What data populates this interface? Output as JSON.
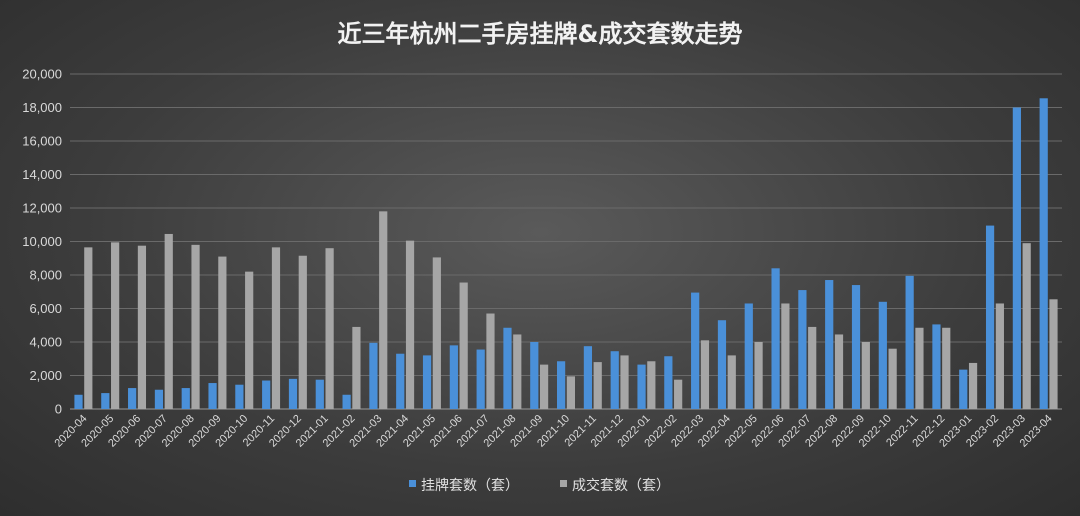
{
  "chart_data": {
    "type": "bar",
    "title": "近三年杭州二手房挂牌&成交套数走势",
    "xlabel": "",
    "ylabel": "",
    "ylim": [
      0,
      20000
    ],
    "yticks": [
      "0",
      "2,000",
      "4,000",
      "6,000",
      "8,000",
      "10,000",
      "12,000",
      "14,000",
      "16,000",
      "18,000",
      "20,000"
    ],
    "grid": true,
    "legend_position": "bottom",
    "categories": [
      "2020-04",
      "2020-05",
      "2020-06",
      "2020-07",
      "2020-08",
      "2020-09",
      "2020-10",
      "2020-11",
      "2020-12",
      "2021-01",
      "2021-02",
      "2021-03",
      "2021-04",
      "2021-05",
      "2021-06",
      "2021-07",
      "2021-08",
      "2021-09",
      "2021-10",
      "2021-11",
      "2021-12",
      "2022-01",
      "2022-02",
      "2022-03",
      "2022-04",
      "2022-05",
      "2022-06",
      "2022-07",
      "2022-08",
      "2022-09",
      "2022-10",
      "2022-11",
      "2022-12",
      "2023-01",
      "2023-02",
      "2023-03",
      "2023-04"
    ],
    "series": [
      {
        "name": "挂牌套数（套）",
        "color": "#4a90d9",
        "values": [
          850,
          950,
          1250,
          1150,
          1250,
          1550,
          1450,
          1700,
          1800,
          1750,
          850,
          3950,
          3300,
          3200,
          3800,
          3550,
          4850,
          4000,
          2850,
          3750,
          3450,
          2650,
          3150,
          6950,
          5300,
          6300,
          8400,
          7100,
          7700,
          7400,
          6400,
          7950,
          5050,
          2350,
          10950,
          18000,
          18550
        ]
      },
      {
        "name": "成交套数（套）",
        "color": "#a6a6a6",
        "values": [
          9650,
          9950,
          9750,
          10450,
          9800,
          9100,
          8200,
          9650,
          9150,
          9600,
          4900,
          11800,
          10050,
          9050,
          7550,
          5700,
          4450,
          2650,
          1950,
          2800,
          3200,
          2850,
          1750,
          4100,
          3200,
          4000,
          6300,
          4900,
          4450,
          4000,
          3600,
          4850,
          4850,
          2750,
          6300,
          9900,
          6550
        ]
      }
    ]
  }
}
